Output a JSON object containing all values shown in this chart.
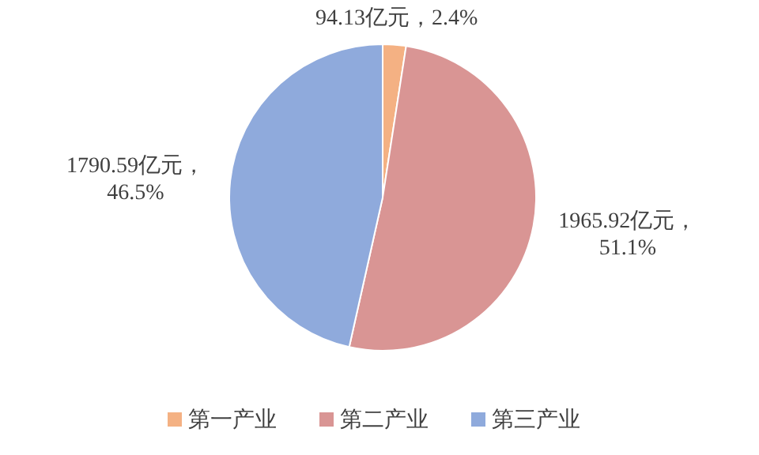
{
  "chart_data": {
    "type": "pie",
    "categories": [
      "第一产业",
      "第二产业",
      "第三产业"
    ],
    "values": [
      94.13,
      1965.92,
      1790.59
    ],
    "colors": [
      "#f4b183",
      "#d99594",
      "#8faadc"
    ],
    "value_labels": [
      "94.13亿元，2.4%",
      "1965.92亿元，51.1%",
      "1790.59亿元，46.5%"
    ],
    "legend": "bottom"
  }
}
